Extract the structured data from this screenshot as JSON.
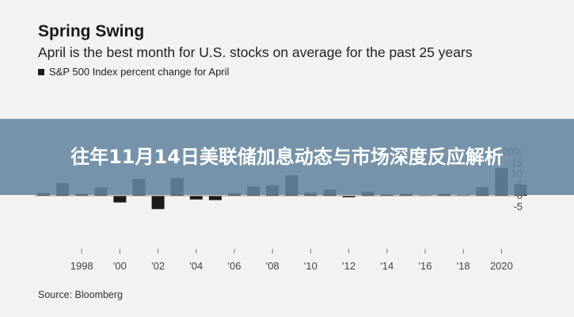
{
  "overlay": {
    "headline": "往年11月14日美联储加息动态与市场深度反应解析"
  },
  "chart_data": {
    "type": "bar",
    "title": "Spring Swing",
    "subtitle": "April is the best month for U.S. stocks on average for the past 25 years",
    "legend": [
      "S&P 500 Index percent change for April"
    ],
    "source": "Source: Bloomberg",
    "series": [
      {
        "name": "S&P 500 Index percent change for April",
        "x": [
          1996,
          1997,
          1998,
          1999,
          2000,
          2001,
          2002,
          2003,
          2004,
          2005,
          2006,
          2007,
          2008,
          2009,
          2010,
          2011,
          2012,
          2013,
          2014,
          2015,
          2016,
          2017,
          2018,
          2019,
          2020,
          2021
        ],
        "values": [
          1.3,
          5.8,
          0.9,
          3.8,
          -3.1,
          7.7,
          -6.1,
          8.1,
          -1.7,
          -2.0,
          1.2,
          4.3,
          4.8,
          9.4,
          1.5,
          2.8,
          -0.7,
          1.8,
          0.6,
          0.9,
          0.3,
          0.9,
          0.3,
          3.9,
          12.7,
          5.2
        ]
      }
    ],
    "ylim": [
      -7,
      20
    ],
    "y_ticks": [
      "20%",
      "15",
      "10",
      "5",
      "0",
      "-5"
    ],
    "x_ticks": [
      {
        "year": 1998,
        "label": "1998"
      },
      {
        "year": 2000,
        "label": "'00"
      },
      {
        "year": 2002,
        "label": "'02"
      },
      {
        "year": 2004,
        "label": "'04"
      },
      {
        "year": 2006,
        "label": "'06"
      },
      {
        "year": 2008,
        "label": "'08"
      },
      {
        "year": 2010,
        "label": "'10"
      },
      {
        "year": 2012,
        "label": "'12"
      },
      {
        "year": 2014,
        "label": "'14"
      },
      {
        "year": 2016,
        "label": "'16"
      },
      {
        "year": 2018,
        "label": "'18"
      },
      {
        "year": 2020,
        "label": "2020"
      }
    ],
    "colors": {
      "bar": "#1a1a1a",
      "baseline": "#999999",
      "axis_text": "#444444"
    }
  }
}
